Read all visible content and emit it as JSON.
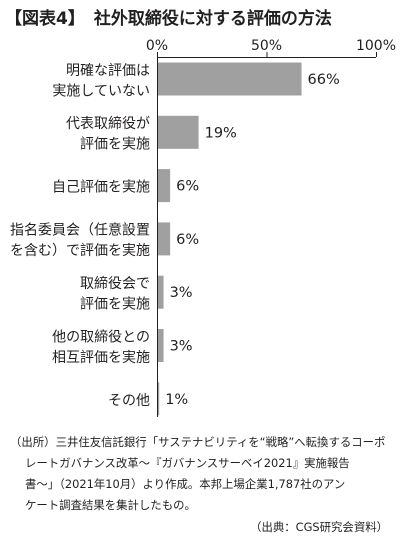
{
  "chart_data": {
    "type": "bar",
    "orientation": "horizontal",
    "figure_label": "【図表4】",
    "title": "社外取締役に対する評価の方法",
    "categories": [
      [
        "明確な評価は",
        "実施していない"
      ],
      [
        "代表取締役が",
        "評価を実施"
      ],
      [
        "自己評価を実施"
      ],
      [
        "指名委員会（任意設置",
        "を含む）で評価を実施"
      ],
      [
        "取締役会で",
        "評価を実施"
      ],
      [
        "他の取締役との",
        "相互評価を実施"
      ],
      [
        "その他"
      ]
    ],
    "values": [
      66,
      19,
      6,
      6,
      3,
      3,
      1
    ],
    "value_labels": [
      "66%",
      "19%",
      "6%",
      "6%",
      "3%",
      "3%",
      "1%"
    ],
    "xlim": [
      0,
      100
    ],
    "x_ticks": [
      0,
      50,
      100
    ],
    "x_tick_labels": [
      "0%",
      "50%",
      "100%"
    ],
    "grid": false,
    "legend": false,
    "colors": {
      "bar": "#a0a0a0",
      "text": "#231f20",
      "axis": "#231f20"
    }
  },
  "notes": {
    "source_lines": [
      "（出所）三井住友信託銀行「サステナビリティを“戦略”へ転換するコーポ",
      "レートガバナンス改革～『ガバナンスサーベイ2021』実施報告",
      "書～」（2021年10月）より作成。本邦上場企業1,787社のアン",
      "ケート調査結果を集計したもの。"
    ],
    "credit": "（出典：CGS研究会資料）"
  }
}
